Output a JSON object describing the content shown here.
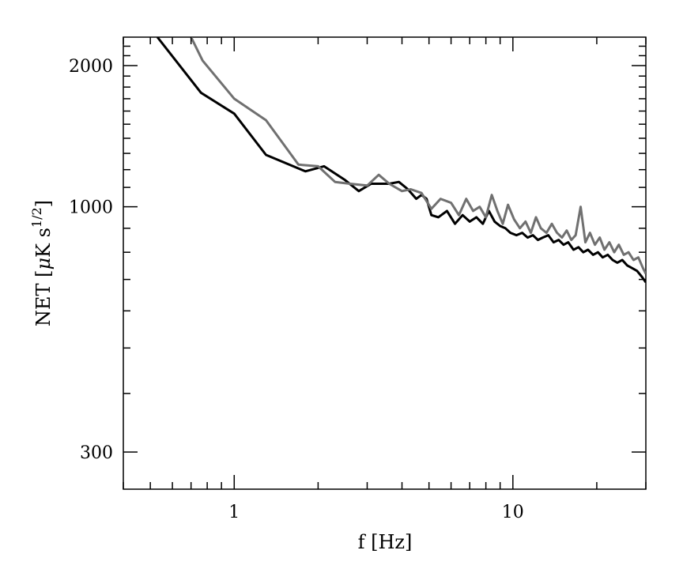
{
  "chart_data": {
    "type": "line",
    "xscale": "log",
    "yscale": "log",
    "xlim": [
      0.4,
      30
    ],
    "ylim": [
      250,
      2300
    ],
    "xlabel": "f [Hz]",
    "ylabel_main": "NET [",
    "ylabel_mu": "μ",
    "ylabel_k": "K s",
    "ylabel_exp": "1/2",
    "ylabel_close": "]",
    "grid": false,
    "x_ticks": [
      {
        "value": 1,
        "label": "1"
      },
      {
        "value": 10,
        "label": "10"
      }
    ],
    "y_ticks": [
      {
        "value": 300,
        "label": "300"
      },
      {
        "value": 1000,
        "label": "1000"
      },
      {
        "value": 2000,
        "label": "2000"
      }
    ],
    "series": [
      {
        "color": "#000000",
        "x": [
          0.53,
          0.76,
          1.0,
          1.3,
          1.8,
          2.1,
          2.5,
          2.8,
          3.1,
          3.6,
          3.9,
          4.2,
          4.5,
          4.7,
          4.9,
          5.1,
          5.4,
          5.8,
          6.2,
          6.6,
          7.0,
          7.4,
          7.8,
          8.2,
          8.6,
          9.0,
          9.4,
          9.8,
          10.3,
          10.8,
          11.3,
          11.8,
          12.3,
          12.8,
          13.4,
          14.0,
          14.6,
          15.2,
          15.8,
          16.5,
          17.2,
          17.9,
          18.6,
          19.4,
          20.2,
          21.0,
          21.9,
          22.8,
          23.7,
          24.7,
          25.7,
          26.8,
          27.9,
          29.0,
          30.0
        ],
        "y": [
          2300,
          1750,
          1580,
          1290,
          1190,
          1220,
          1140,
          1080,
          1120,
          1120,
          1130,
          1090,
          1040,
          1060,
          1040,
          960,
          950,
          980,
          920,
          960,
          930,
          950,
          920,
          980,
          930,
          910,
          900,
          880,
          870,
          880,
          860,
          870,
          850,
          860,
          870,
          840,
          850,
          830,
          840,
          810,
          820,
          800,
          810,
          790,
          800,
          780,
          790,
          770,
          760,
          770,
          750,
          740,
          730,
          710,
          690
        ]
      },
      {
        "color": "#707070",
        "x": [
          0.7,
          0.77,
          1.0,
          1.3,
          1.7,
          2.0,
          2.3,
          2.6,
          3.0,
          3.3,
          3.6,
          4.0,
          4.3,
          4.7,
          5.1,
          5.5,
          6.0,
          6.4,
          6.8,
          7.2,
          7.6,
          8.0,
          8.4,
          8.8,
          9.2,
          9.6,
          10.1,
          10.6,
          11.1,
          11.6,
          12.1,
          12.6,
          13.2,
          13.8,
          14.4,
          15.0,
          15.6,
          16.2,
          16.8,
          17.5,
          18.2,
          18.9,
          19.7,
          20.5,
          21.3,
          22.2,
          23.1,
          24.0,
          25.0,
          26.0,
          27.1,
          28.2,
          29.3,
          30.0
        ],
        "y": [
          2300,
          2050,
          1700,
          1530,
          1230,
          1220,
          1130,
          1120,
          1110,
          1170,
          1120,
          1080,
          1090,
          1070,
          990,
          1040,
          1020,
          960,
          1040,
          980,
          1000,
          950,
          1060,
          980,
          920,
          1010,
          940,
          900,
          930,
          880,
          950,
          900,
          880,
          920,
          880,
          860,
          890,
          850,
          870,
          1000,
          840,
          880,
          830,
          860,
          810,
          840,
          800,
          830,
          790,
          800,
          770,
          780,
          740,
          720
        ]
      }
    ]
  }
}
